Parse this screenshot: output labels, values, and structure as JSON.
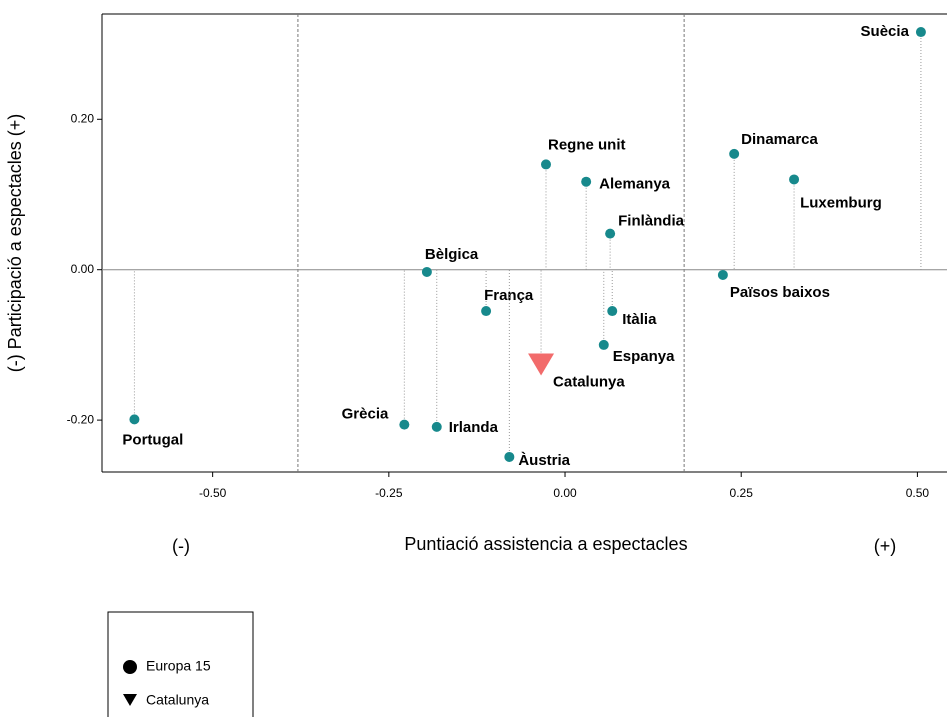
{
  "chart_data": {
    "type": "scatter",
    "x_label": "Puntiació assistencia a espectacles",
    "x_label_left": "(-)",
    "x_label_right": "(+)",
    "y_label": "(-) Participació a espectacles (+)",
    "xlim": [
      -0.657,
      0.542
    ],
    "ylim": [
      -0.269,
      0.34
    ],
    "xticks": [
      {
        "value": -0.5,
        "label": "-0.50"
      },
      {
        "value": -0.25,
        "label": "-0.25"
      },
      {
        "value": 0,
        "label": "0.00"
      },
      {
        "value": 0.25,
        "label": "0.25"
      },
      {
        "value": 0.5,
        "label": "0.50"
      }
    ],
    "yticks": [
      {
        "value": -0.2,
        "label": "-0.20"
      },
      {
        "value": 0,
        "label": "0.00"
      },
      {
        "value": 0.2,
        "label": "0.20"
      }
    ],
    "reference_lines_x": [
      -0.379,
      0.169
    ],
    "reference_lines_y": [
      0
    ],
    "drop_lines": true,
    "series": [
      {
        "name": "Europa 15",
        "color": "#17898c",
        "marker": "circle",
        "labels": [
          "Suècia",
          "Dinamarca",
          "Luxemburg",
          "Regne unit",
          "Alemanya",
          "Finlàndia",
          "Bèlgica",
          "Països baixos",
          "França",
          "Itàlia",
          "Espanya",
          "Portugal",
          "Grècia",
          "Irlanda",
          "Àustria"
        ],
        "x": [
          0.505,
          0.24,
          0.325,
          -0.027,
          0.03,
          0.064,
          -0.196,
          0.224,
          -0.112,
          0.067,
          0.055,
          -0.611,
          -0.228,
          -0.182,
          -0.079
        ],
        "y": [
          0.316,
          0.154,
          0.12,
          0.14,
          0.117,
          0.048,
          -0.003,
          -0.007,
          -0.055,
          -0.055,
          -0.1,
          -0.199,
          -0.206,
          -0.209,
          -0.249
        ]
      },
      {
        "name": "Catalunya",
        "color": "#f26b6b",
        "marker": "triangle",
        "labels": [
          "Catalunya"
        ],
        "x": [
          -0.034
        ],
        "y": [
          -0.126
        ]
      }
    ]
  }
}
